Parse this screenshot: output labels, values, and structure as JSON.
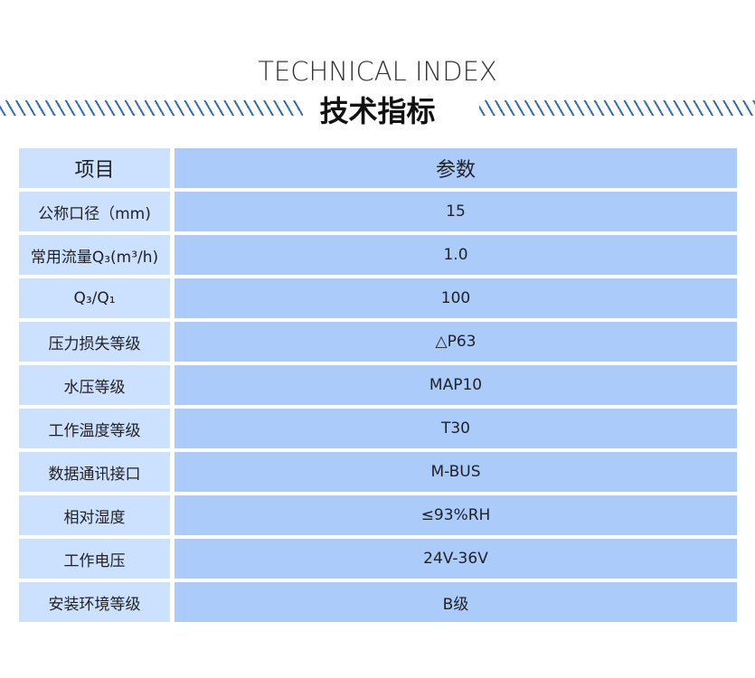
{
  "title_en": "TECHNICAL INDEX",
  "title_cn": "技术指标",
  "colors": {
    "accent": "#2d6fb8",
    "label_bg": "#cce0ff",
    "value_bg": "#abcbfb"
  },
  "table": {
    "headers": [
      "项目",
      "参数"
    ],
    "rows": [
      {
        "label": "公称口径（mm)",
        "value": "15"
      },
      {
        "label": "常用流量Q₃(m³/h)",
        "value": "1.0"
      },
      {
        "label": "Q₃/Q₁",
        "value": "100"
      },
      {
        "label": "压力损失等级",
        "value": "△P63"
      },
      {
        "label": "水压等级",
        "value": "MAP10"
      },
      {
        "label": "工作温度等级",
        "value": "T30"
      },
      {
        "label": "数据通讯接口",
        "value": "M-BUS"
      },
      {
        "label": "相对湿度",
        "value": "≤93%RH"
      },
      {
        "label": "工作电压",
        "value": "24V-36V"
      },
      {
        "label": "安装环境等级",
        "value": "B级"
      }
    ]
  }
}
